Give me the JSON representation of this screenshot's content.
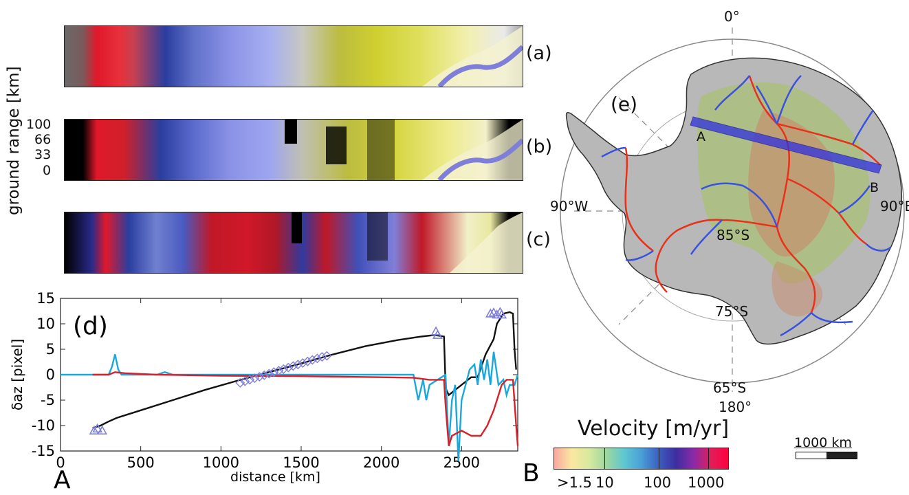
{
  "figure_labels": {
    "left": "A",
    "right": "B"
  },
  "strips": {
    "a": {
      "label": "(a)"
    },
    "b": {
      "label": "(b)"
    },
    "c": {
      "label": "(c)"
    },
    "ylabel": "ground range [km]",
    "b_ticks": [
      "100",
      "66",
      "33",
      "0"
    ]
  },
  "chart_data": [
    {
      "type": "line",
      "panel": "(d)",
      "xlabel": "distance [km]",
      "ylabel": "δaz [pixel]",
      "xlim": [
        0,
        2850
      ],
      "ylim": [
        -15,
        15
      ],
      "xticks": [
        "0",
        "500",
        "1000",
        "1500",
        "2000",
        "2500"
      ],
      "yticks": [
        "15",
        "10",
        "5",
        "0",
        "-5",
        "-10",
        "-15"
      ],
      "grid": false,
      "series": [
        {
          "color": "#111111",
          "points": [
            [
              200,
              -10.5
            ],
            [
              250,
              -10
            ],
            [
              300,
              -9.2
            ],
            [
              350,
              -8.5
            ],
            [
              400,
              -8
            ],
            [
              500,
              -7
            ],
            [
              700,
              -5
            ],
            [
              900,
              -3
            ],
            [
              1100,
              -1.2
            ],
            [
              1300,
              0.5
            ],
            [
              1500,
              2.2
            ],
            [
              1700,
              4
            ],
            [
              1900,
              5.6
            ],
            [
              2100,
              6.8
            ],
            [
              2250,
              7.5
            ],
            [
              2330,
              7.8
            ],
            [
              2390,
              7.5
            ],
            [
              2400,
              -2
            ],
            [
              2405,
              -3
            ],
            [
              2420,
              -4
            ],
            [
              2500,
              -2
            ],
            [
              2560,
              -0.5
            ],
            [
              2600,
              -0.5
            ],
            [
              2650,
              4
            ],
            [
              2700,
              7
            ],
            [
              2720,
              10
            ],
            [
              2760,
              12
            ],
            [
              2800,
              12.3
            ],
            [
              2820,
              12
            ],
            [
              2830,
              5
            ],
            [
              2840,
              1
            ]
          ]
        },
        {
          "color": "#19a8dc",
          "points": [
            [
              0,
              0
            ],
            [
              150,
              0
            ],
            [
              300,
              0
            ],
            [
              320,
              1.5
            ],
            [
              340,
              4
            ],
            [
              360,
              1
            ],
            [
              380,
              0
            ],
            [
              600,
              0
            ],
            [
              650,
              0.5
            ],
            [
              700,
              0
            ],
            [
              1000,
              0
            ],
            [
              1500,
              0
            ],
            [
              2000,
              0
            ],
            [
              2200,
              0
            ],
            [
              2230,
              -5
            ],
            [
              2260,
              -1
            ],
            [
              2280,
              -5
            ],
            [
              2300,
              -2
            ],
            [
              2350,
              -1
            ],
            [
              2400,
              0
            ],
            [
              2420,
              -14
            ],
            [
              2440,
              -5
            ],
            [
              2460,
              -2
            ],
            [
              2480,
              -17
            ],
            [
              2500,
              -5
            ],
            [
              2550,
              1
            ],
            [
              2580,
              2
            ],
            [
              2600,
              -2
            ],
            [
              2620,
              3
            ],
            [
              2640,
              -1
            ],
            [
              2660,
              3
            ],
            [
              2680,
              -2
            ],
            [
              2700,
              4.5
            ],
            [
              2730,
              -2
            ],
            [
              2760,
              -1
            ],
            [
              2780,
              -4
            ],
            [
              2800,
              -2
            ],
            [
              2830,
              -2
            ],
            [
              2850,
              0
            ]
          ]
        },
        {
          "color": "#d8202a",
          "points": [
            [
              200,
              0
            ],
            [
              300,
              0
            ],
            [
              340,
              0.5
            ],
            [
              400,
              0.3
            ],
            [
              600,
              0
            ],
            [
              1000,
              -0.2
            ],
            [
              1500,
              -0.3
            ],
            [
              2000,
              -0.5
            ],
            [
              2200,
              -0.6
            ],
            [
              2300,
              -1
            ],
            [
              2390,
              -1
            ],
            [
              2400,
              -6
            ],
            [
              2420,
              -14
            ],
            [
              2440,
              -12
            ],
            [
              2500,
              -11
            ],
            [
              2560,
              -12
            ],
            [
              2620,
              -12
            ],
            [
              2660,
              -10
            ],
            [
              2700,
              -7
            ],
            [
              2750,
              -2
            ],
            [
              2780,
              -1
            ],
            [
              2800,
              -1
            ],
            [
              2820,
              -1
            ],
            [
              2840,
              -10
            ],
            [
              2850,
              -14
            ]
          ]
        }
      ],
      "markers": {
        "color": "#7f7fd9",
        "triangles": [
          [
            210,
            -11
          ],
          [
            230,
            -10.6
          ],
          [
            260,
            -11
          ],
          [
            2340,
            8.5
          ],
          [
            2350,
            7.8
          ],
          [
            2680,
            12
          ],
          [
            2700,
            12.2
          ],
          [
            2720,
            11.8
          ],
          [
            2740,
            12.3
          ],
          [
            2750,
            11.8
          ]
        ],
        "diamonds": [
          [
            1120,
            -1.6
          ],
          [
            1150,
            -1.3
          ],
          [
            1180,
            -1
          ],
          [
            1210,
            -0.7
          ],
          [
            1240,
            -0.4
          ],
          [
            1270,
            -0.1
          ],
          [
            1300,
            0.2
          ],
          [
            1330,
            0.5
          ],
          [
            1360,
            0.8
          ],
          [
            1390,
            1.1
          ],
          [
            1420,
            1.4
          ],
          [
            1450,
            1.7
          ],
          [
            1480,
            2
          ],
          [
            1510,
            2.3
          ],
          [
            1540,
            2.6
          ],
          [
            1570,
            2.9
          ],
          [
            1600,
            3.2
          ],
          [
            1630,
            3.5
          ],
          [
            1660,
            3.7
          ]
        ]
      }
    },
    {
      "type": "colorbar",
      "title": "Velocity [m/yr]",
      "tick_labels": [
        ">1.5",
        "10",
        "100",
        "1000"
      ],
      "colors": [
        "#f8a8a0",
        "#fbe7a0",
        "#d8e9a0",
        "#9ed6a0",
        "#5fc8d0",
        "#4aa0d6",
        "#3b5fc2",
        "#3e2da0",
        "#8a2aa8",
        "#e01e5a",
        "#ff0040"
      ]
    }
  ],
  "map": {
    "panel": "(e)",
    "labels": {
      "top": "0°",
      "bottom": "180°",
      "left": "90°W",
      "right": "90°E",
      "lat_85": "85°S",
      "lat_75": "75°S",
      "lat_65": "65°S",
      "point_a": "A",
      "point_b": "B"
    },
    "scale_bar": "1000 km"
  }
}
